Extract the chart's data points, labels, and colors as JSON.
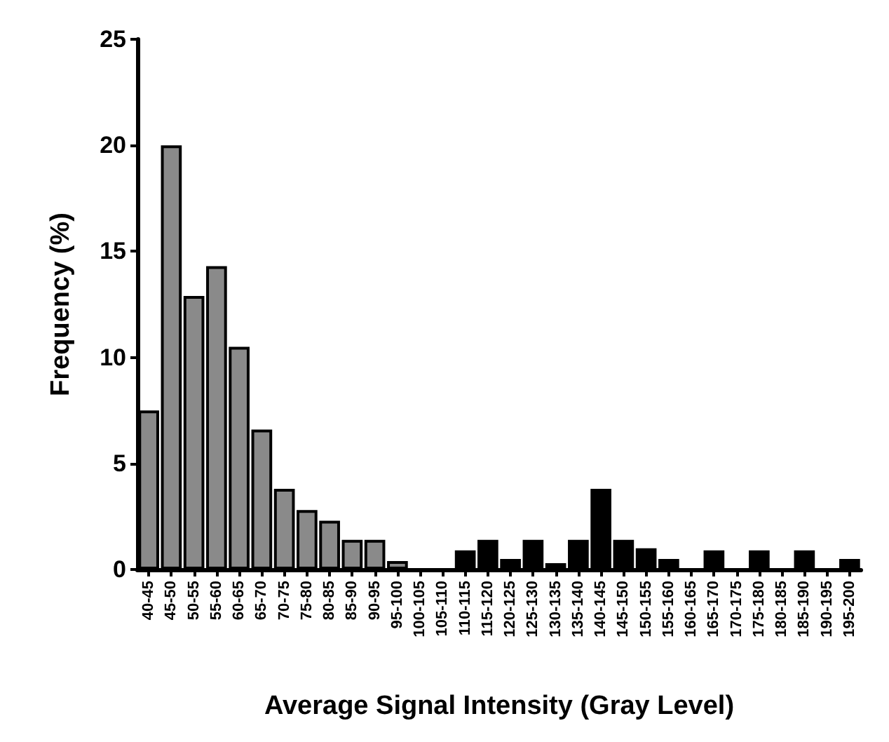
{
  "chart_data": {
    "type": "bar",
    "xlabel": "Average Signal Intensity (Gray Level)",
    "ylabel": "Frequency (%)",
    "categories": [
      "40-45",
      "45-50",
      "50-55",
      "55-60",
      "60-65",
      "65-70",
      "70-75",
      "75-80",
      "80-85",
      "85-90",
      "90-95",
      "95-100",
      "100-105",
      "105-110",
      "110-115",
      "115-120",
      "120-125",
      "125-130",
      "130-135",
      "135-140",
      "140-145",
      "145-150",
      "150-155",
      "155-160",
      "160-165",
      "165-170",
      "170-175",
      "175-180",
      "180-185",
      "185-190",
      "190-195",
      "195-200"
    ],
    "values": [
      7.5,
      20,
      12.9,
      14.3,
      10.5,
      6.6,
      3.8,
      2.8,
      2.3,
      1.4,
      1.4,
      0.4,
      0,
      0,
      0.9,
      1.4,
      0.5,
      1.4,
      0.3,
      1.4,
      3.8,
      1.4,
      1,
      0.5,
      0,
      0.9,
      0,
      0.9,
      0,
      0.9,
      0,
      0.5
    ],
    "colors": [
      "#8a8a8a",
      "#8a8a8a",
      "#8a8a8a",
      "#8a8a8a",
      "#8a8a8a",
      "#8a8a8a",
      "#8a8a8a",
      "#8a8a8a",
      "#8a8a8a",
      "#8a8a8a",
      "#8a8a8a",
      "#8a8a8a",
      "#000000",
      "#000000",
      "#000000",
      "#000000",
      "#000000",
      "#000000",
      "#000000",
      "#000000",
      "#000000",
      "#000000",
      "#000000",
      "#000000",
      "#000000",
      "#000000",
      "#000000",
      "#000000",
      "#000000",
      "#000000",
      "#000000",
      "#000000"
    ],
    "ylim": [
      0,
      25
    ],
    "yticks": [
      0,
      5,
      10,
      15,
      20,
      25
    ],
    "grid": false
  }
}
